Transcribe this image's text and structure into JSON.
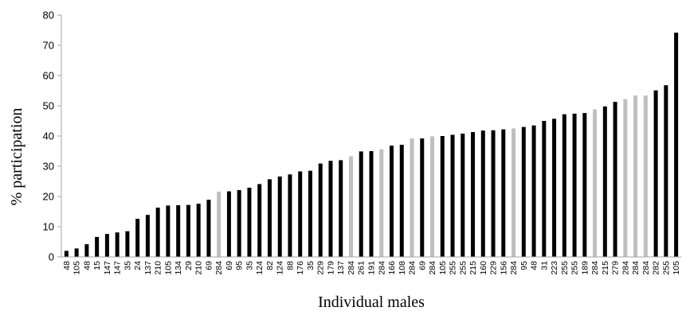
{
  "chart_data": {
    "type": "bar",
    "title": "",
    "xlabel": "Individual males",
    "ylabel": "% participation",
    "ylim": [
      0,
      80
    ],
    "yticks": [
      0,
      10,
      20,
      30,
      40,
      50,
      60,
      70,
      80
    ],
    "grid": false,
    "legend": "none",
    "colors": {
      "dark": "#000000",
      "light": "#bfbfbf",
      "axis": "#a6a6a6"
    },
    "categories": [
      "48",
      "105",
      "48",
      "15",
      "147",
      "147",
      "35",
      "24",
      "137",
      "210",
      "105",
      "134",
      "29",
      "210",
      "69",
      "284",
      "69",
      "95",
      "35",
      "124",
      "82",
      "124",
      "88",
      "176",
      "35",
      "229",
      "179",
      "137",
      "284",
      "261",
      "191",
      "284",
      "166",
      "108",
      "284",
      "69",
      "284",
      "105",
      "255",
      "255",
      "215",
      "160",
      "229",
      "156",
      "284",
      "95",
      "48",
      "31",
      "223",
      "255",
      "255",
      "189",
      "284",
      "215",
      "279",
      "284",
      "284",
      "284",
      "282",
      "255",
      "105"
    ],
    "values": [
      2.0,
      2.8,
      4.2,
      6.6,
      7.6,
      8.1,
      8.5,
      12.6,
      13.9,
      16.3,
      17.0,
      17.1,
      17.2,
      17.6,
      18.9,
      21.6,
      21.7,
      22.1,
      22.9,
      24.1,
      25.7,
      26.6,
      27.3,
      28.3,
      28.5,
      30.9,
      31.8,
      32.0,
      33.3,
      34.9,
      35.0,
      35.6,
      36.8,
      37.1,
      39.2,
      39.2,
      39.9,
      40.0,
      40.4,
      40.8,
      41.3,
      41.8,
      41.9,
      42.2,
      42.5,
      43.0,
      43.5,
      45.0,
      45.7,
      47.2,
      47.4,
      47.6,
      48.8,
      49.8,
      51.3,
      52.2,
      53.4,
      53.4,
      55.1,
      56.8,
      74.2
    ],
    "shades": [
      "d",
      "d",
      "d",
      "d",
      "d",
      "d",
      "d",
      "d",
      "d",
      "d",
      "d",
      "d",
      "d",
      "d",
      "d",
      "l",
      "d",
      "d",
      "d",
      "d",
      "d",
      "d",
      "d",
      "d",
      "d",
      "d",
      "d",
      "d",
      "l",
      "d",
      "d",
      "l",
      "d",
      "d",
      "l",
      "d",
      "l",
      "d",
      "d",
      "d",
      "d",
      "d",
      "d",
      "d",
      "l",
      "d",
      "d",
      "d",
      "d",
      "d",
      "d",
      "d",
      "l",
      "d",
      "d",
      "l",
      "l",
      "l",
      "d",
      "d",
      "d"
    ]
  }
}
